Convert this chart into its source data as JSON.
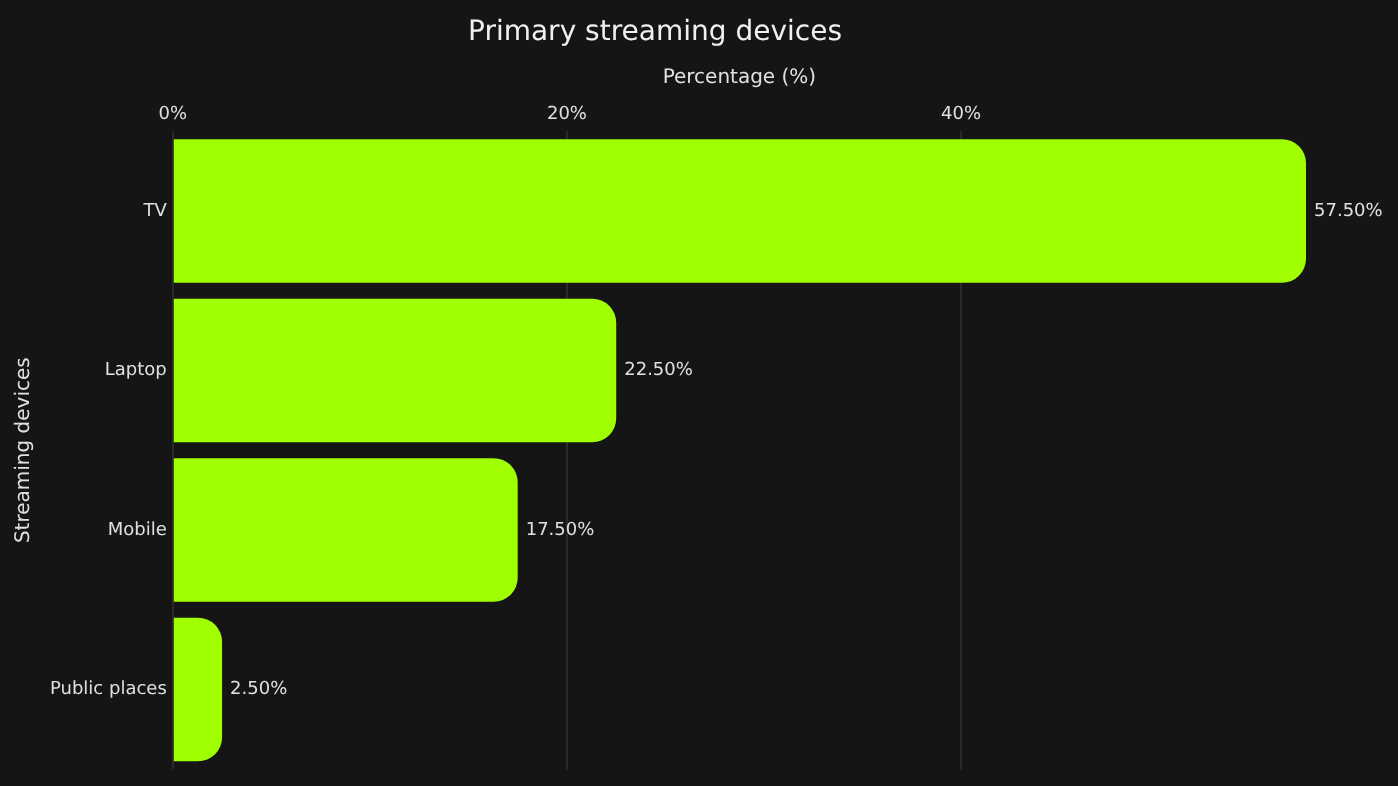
{
  "chart_data": {
    "type": "bar",
    "orientation": "horizontal",
    "title": "Primary streaming devices",
    "xlabel": "Percentage (%)",
    "ylabel": "Streaming devices",
    "categories": [
      "TV",
      "Laptop",
      "Mobile",
      "Public places"
    ],
    "values": [
      57.5,
      22.5,
      17.5,
      2.5
    ],
    "color": "#a0ff00",
    "value_labels": [
      "57.50%",
      "22.50%",
      "17.50%",
      "2.50%"
    ],
    "xlim": [
      0,
      57.5
    ],
    "xticks": [
      {
        "value": 0,
        "label": "0%"
      },
      {
        "value": 20,
        "label": "20%"
      },
      {
        "value": 40,
        "label": "40%"
      }
    ],
    "grid": "x",
    "legend": false
  }
}
